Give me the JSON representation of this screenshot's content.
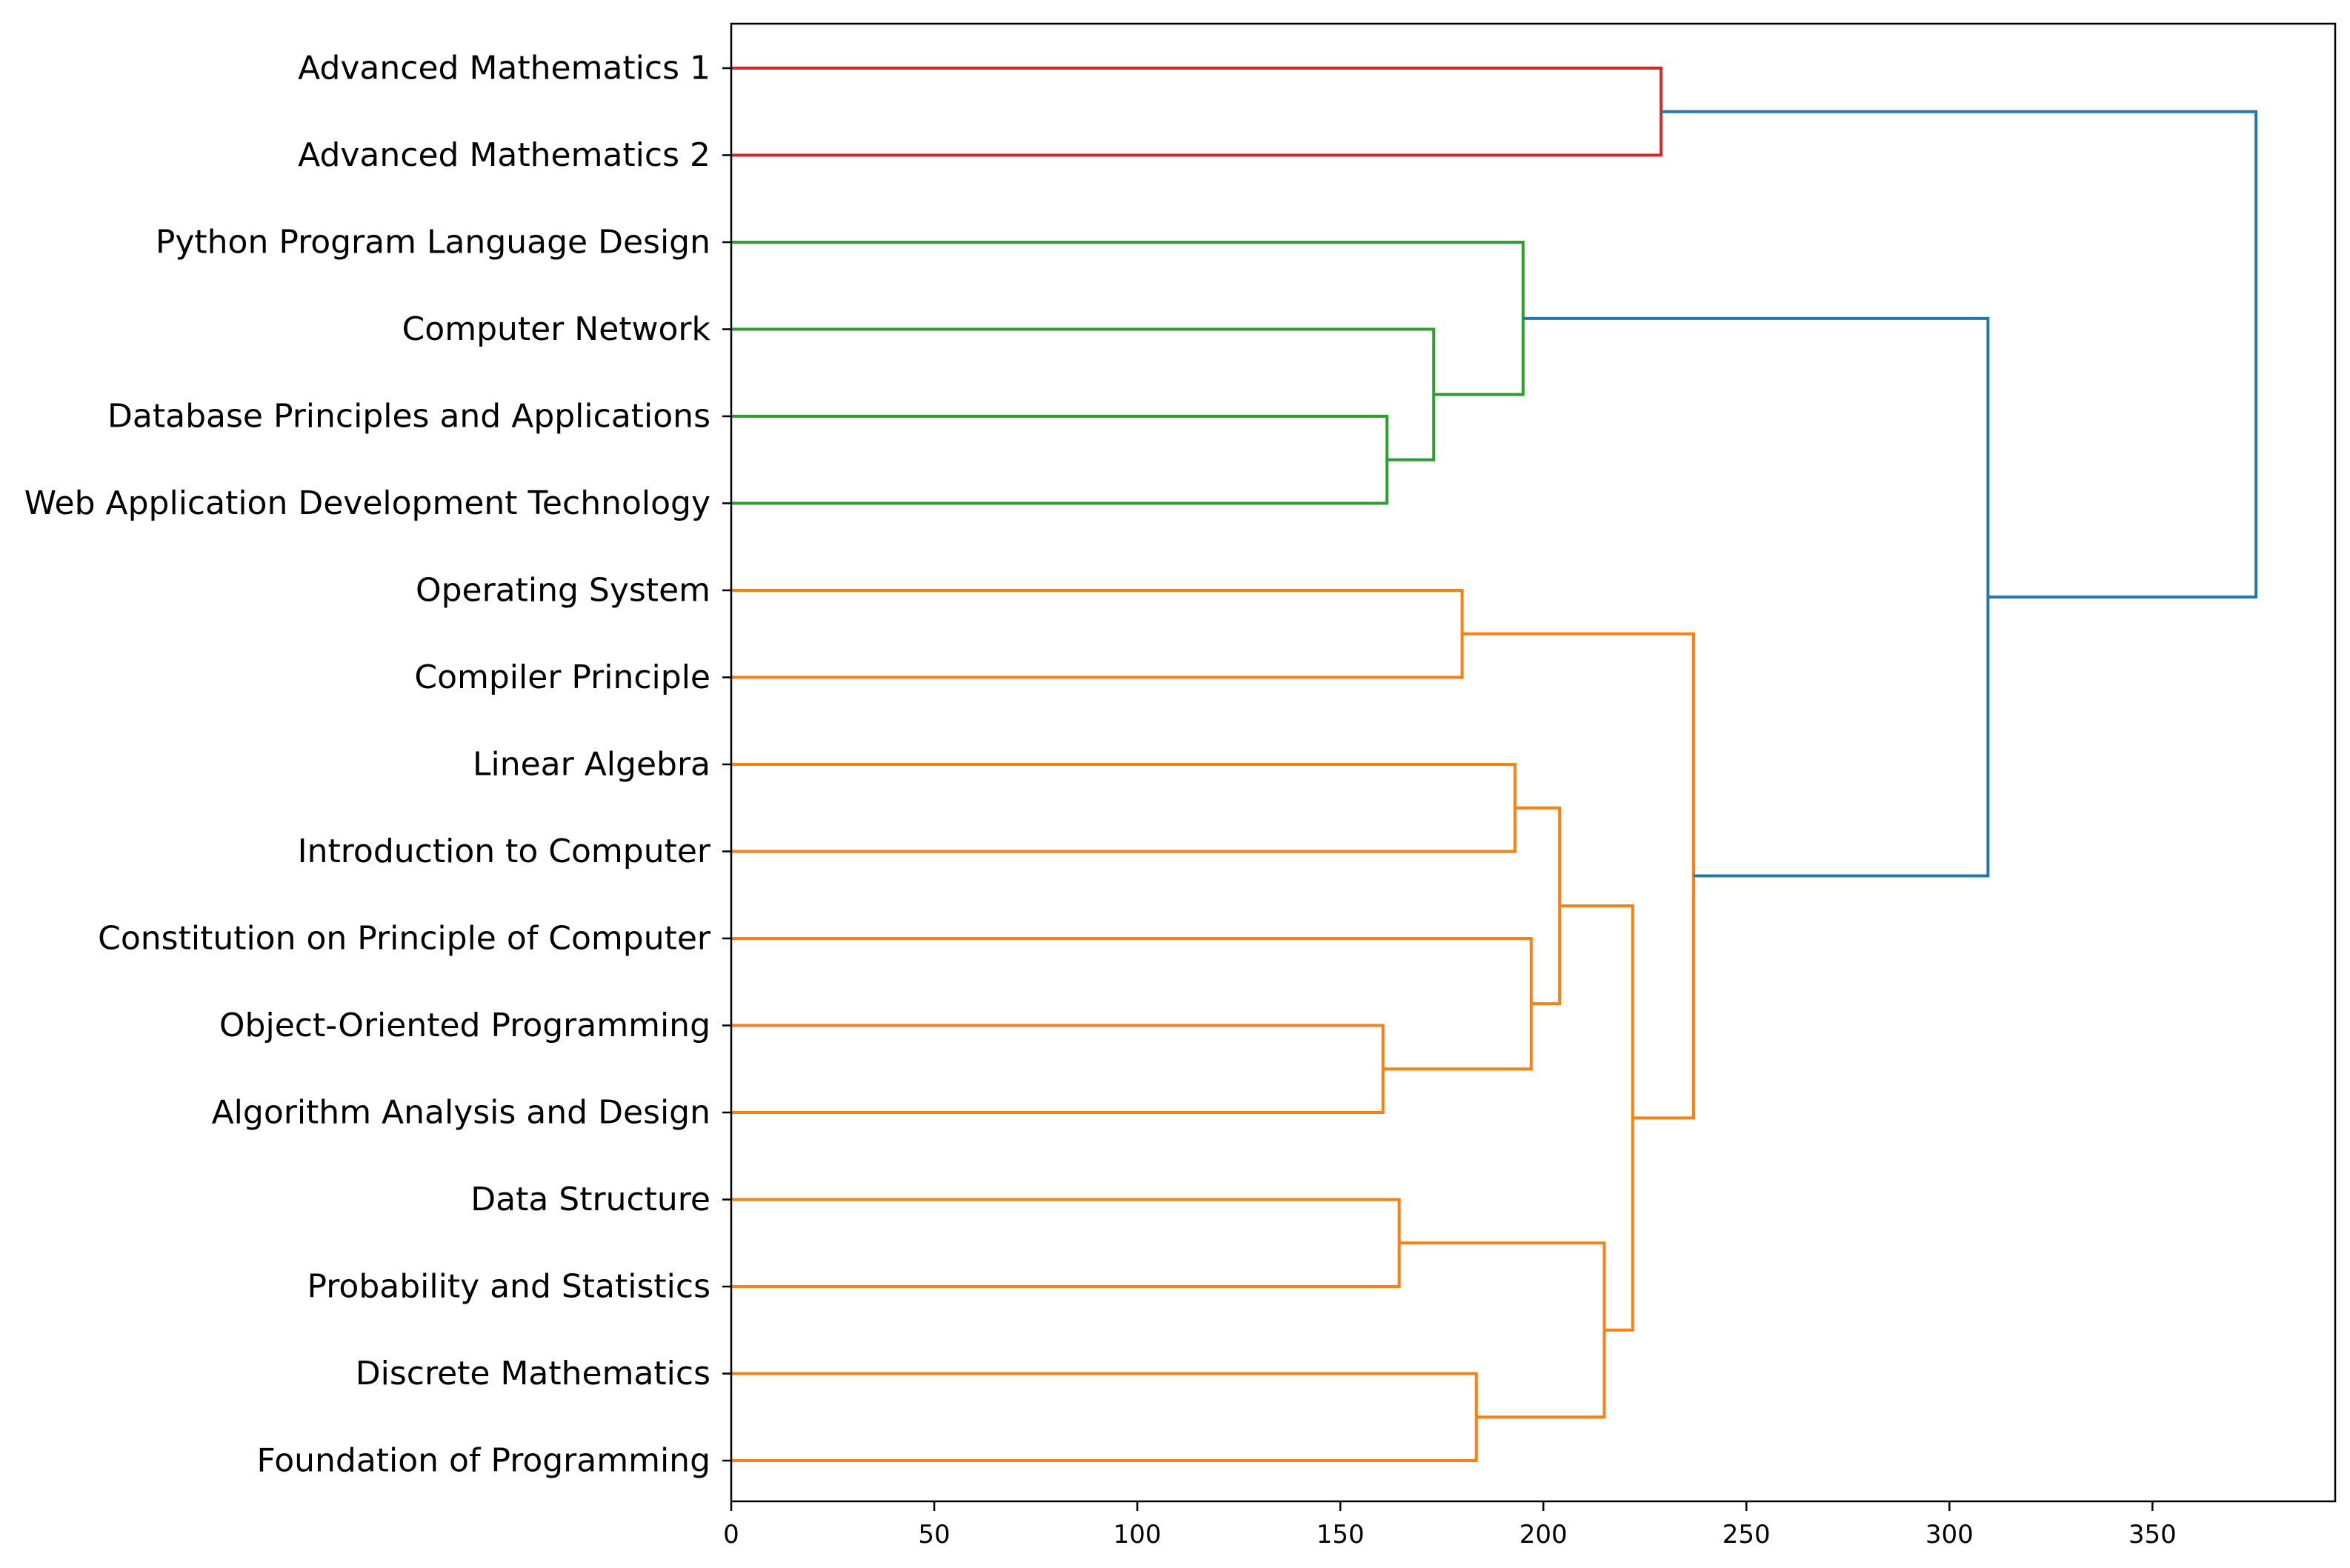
{
  "chart_data": {
    "type": "dendrogram",
    "orientation": "horizontal",
    "title": "",
    "xlabel": "",
    "ylabel": "",
    "xlim": [
      0,
      395
    ],
    "xticks": [
      0,
      50,
      100,
      150,
      200,
      250,
      300,
      350
    ],
    "grid": false,
    "leaves": [
      "Advanced Mathematics 1",
      "Advanced Mathematics 2",
      "Python Program Language Design",
      "Computer Network",
      "Database Principles and Applications",
      "Web Application Development Technology",
      "Operating System",
      "Compiler Principle",
      "Linear Algebra",
      "Introduction to Computer",
      "Constitution on Principle of Computer",
      "Object-Oriented Programming",
      "Algorithm Analysis and Design",
      "Data Structure",
      "Probability and Statistics",
      "Discrete Mathematics",
      "Foundation of Programming"
    ],
    "merges": [
      {
        "id": "m0",
        "left": 0,
        "right": 1,
        "distance": 229,
        "color": "#d62728"
      },
      {
        "id": "m1",
        "left": 4,
        "right": 5,
        "distance": 161.5,
        "color": "#2ca02c"
      },
      {
        "id": "m2",
        "left": 3,
        "right": "m1",
        "distance": 173,
        "color": "#2ca02c"
      },
      {
        "id": "m3",
        "left": 2,
        "right": "m2",
        "distance": 195,
        "color": "#2ca02c"
      },
      {
        "id": "m4",
        "left": 6,
        "right": 7,
        "distance": 180,
        "color": "#ff7f0e"
      },
      {
        "id": "m5",
        "left": 8,
        "right": 9,
        "distance": 193,
        "color": "#ff7f0e"
      },
      {
        "id": "m6",
        "left": 11,
        "right": 12,
        "distance": 160.5,
        "color": "#ff7f0e"
      },
      {
        "id": "m7",
        "left": 10,
        "right": "m6",
        "distance": 197,
        "color": "#ff7f0e"
      },
      {
        "id": "m8",
        "left": "m5",
        "right": "m7",
        "distance": 204,
        "color": "#ff7f0e"
      },
      {
        "id": "m9",
        "left": 13,
        "right": 14,
        "distance": 164.5,
        "color": "#ff7f0e"
      },
      {
        "id": "m10",
        "left": 15,
        "right": 16,
        "distance": 183.5,
        "color": "#ff7f0e"
      },
      {
        "id": "m11",
        "left": "m9",
        "right": "m10",
        "distance": 215,
        "color": "#ff7f0e"
      },
      {
        "id": "m12",
        "left": "m8",
        "right": "m11",
        "distance": 222,
        "color": "#ff7f0e"
      },
      {
        "id": "m13",
        "left": "m4",
        "right": "m12",
        "distance": 237,
        "color": "#ff7f0e"
      },
      {
        "id": "m14",
        "left": "m3",
        "right": "m13",
        "distance": 309.5,
        "color": "#1f77b4"
      },
      {
        "id": "m15",
        "left": "m0",
        "right": "m14",
        "distance": 375.5,
        "color": "#1f77b4"
      }
    ]
  }
}
